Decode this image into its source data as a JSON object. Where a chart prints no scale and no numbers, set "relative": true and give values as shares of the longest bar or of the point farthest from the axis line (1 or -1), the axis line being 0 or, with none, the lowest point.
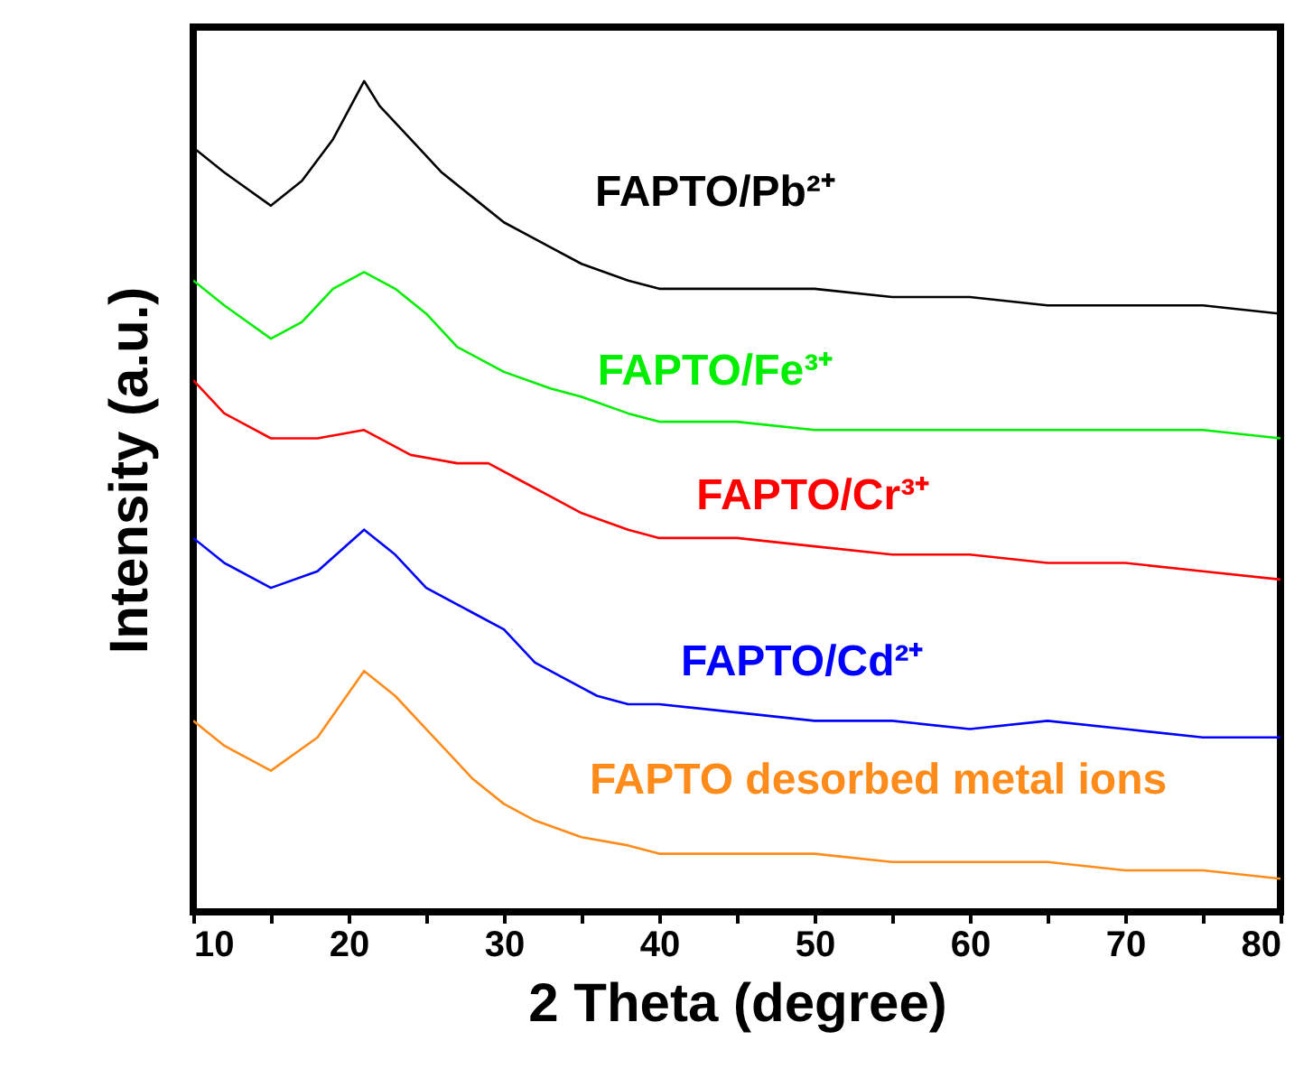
{
  "chart_data": {
    "type": "line",
    "relative": true,
    "xlabel": "2 Theta (degree)",
    "ylabel": "Intensity (a.u.)",
    "xlim": [
      10,
      80
    ],
    "xticks": [
      10,
      {
        "value": 15,
        "label": null
      },
      20,
      {
        "value": 25,
        "label": null
      },
      30,
      {
        "value": 35,
        "label": null
      },
      40,
      {
        "value": 45,
        "label": null
      },
      50,
      {
        "value": 55,
        "label": null
      },
      60,
      {
        "value": 65,
        "label": null
      },
      70,
      {
        "value": 75,
        "label": null
      },
      80
    ],
    "grid": false,
    "marker": "none",
    "line_style": "solid",
    "series": [
      {
        "name": "FAPTO/Pb²⁺",
        "color": "#000000",
        "x": [
          10,
          12,
          15,
          17,
          19,
          21,
          22,
          24,
          26,
          28,
          30,
          33,
          35,
          38,
          40,
          45,
          50,
          55,
          60,
          65,
          70,
          75,
          80
        ],
        "values": [
          0.92,
          0.89,
          0.85,
          0.88,
          0.93,
          1.0,
          0.97,
          0.93,
          0.89,
          0.86,
          0.83,
          0.8,
          0.78,
          0.76,
          0.75,
          0.75,
          0.75,
          0.74,
          0.74,
          0.73,
          0.73,
          0.73,
          0.72
        ]
      },
      {
        "name": "FAPTO/Fe³⁺",
        "color": "#00ee00",
        "x": [
          10,
          12,
          15,
          17,
          19,
          21,
          23,
          25,
          27,
          30,
          33,
          35,
          38,
          40,
          45,
          50,
          55,
          60,
          65,
          70,
          75,
          80
        ],
        "values": [
          0.76,
          0.73,
          0.69,
          0.71,
          0.75,
          0.77,
          0.75,
          0.72,
          0.68,
          0.65,
          0.63,
          0.62,
          0.6,
          0.59,
          0.59,
          0.58,
          0.58,
          0.58,
          0.58,
          0.58,
          0.58,
          0.57
        ]
      },
      {
        "name": "FAPTO/Cr³⁺",
        "color": "#ff0000",
        "x": [
          10,
          12,
          15,
          18,
          21,
          24,
          27,
          29,
          31,
          33,
          35,
          38,
          40,
          45,
          50,
          55,
          60,
          65,
          70,
          75,
          80
        ],
        "values": [
          0.64,
          0.6,
          0.57,
          0.57,
          0.58,
          0.55,
          0.54,
          0.54,
          0.52,
          0.5,
          0.48,
          0.46,
          0.45,
          0.45,
          0.44,
          0.43,
          0.43,
          0.42,
          0.42,
          0.41,
          0.4
        ]
      },
      {
        "name": "FAPTO/Cd²⁺",
        "color": "#0000ff",
        "x": [
          10,
          12,
          15,
          18,
          21,
          23,
          25,
          28,
          30,
          32,
          34,
          36,
          38,
          40,
          45,
          50,
          55,
          60,
          65,
          70,
          75,
          80
        ],
        "values": [
          0.45,
          0.42,
          0.39,
          0.41,
          0.46,
          0.43,
          0.39,
          0.36,
          0.34,
          0.3,
          0.28,
          0.26,
          0.25,
          0.25,
          0.24,
          0.23,
          0.23,
          0.22,
          0.23,
          0.22,
          0.21,
          0.21
        ]
      },
      {
        "name": "FAPTO desorbed metal ions",
        "color": "#ff8c1a",
        "x": [
          10,
          12,
          15,
          18,
          21,
          23,
          25,
          28,
          30,
          32,
          35,
          38,
          40,
          45,
          50,
          55,
          60,
          65,
          70,
          75,
          80
        ],
        "values": [
          0.23,
          0.2,
          0.17,
          0.21,
          0.29,
          0.26,
          0.22,
          0.16,
          0.13,
          0.11,
          0.09,
          0.08,
          0.07,
          0.07,
          0.07,
          0.06,
          0.06,
          0.06,
          0.05,
          0.05,
          0.04
        ]
      }
    ]
  }
}
